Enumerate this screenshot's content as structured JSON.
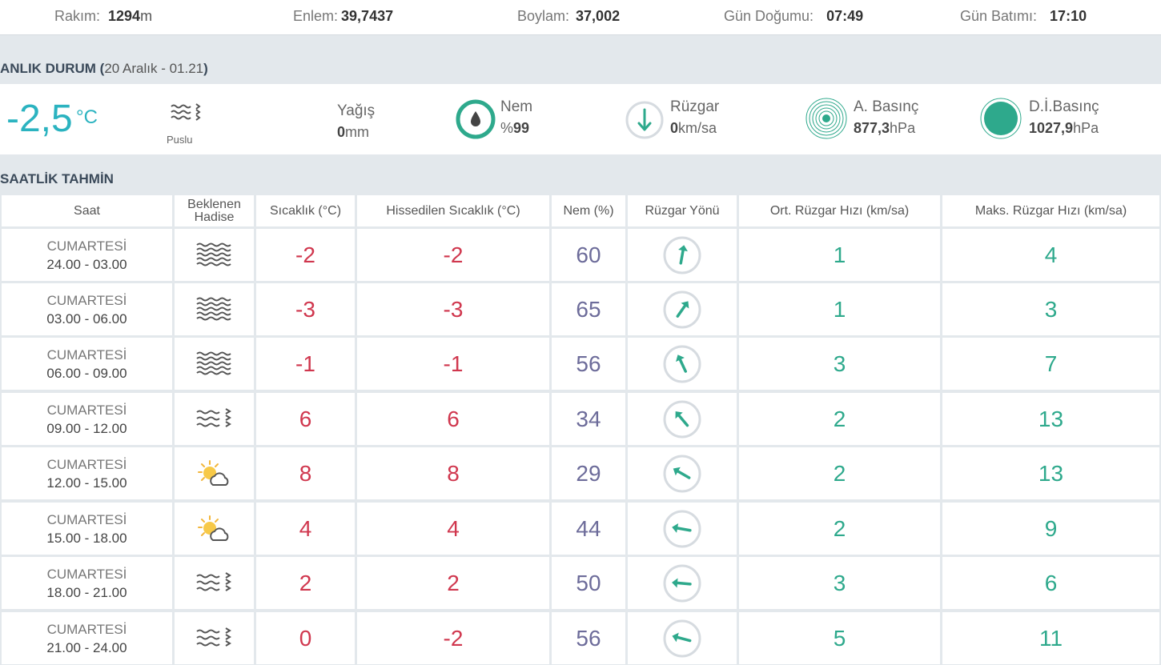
{
  "location": {
    "altitude_label": "Rakım:",
    "altitude_value": "1294",
    "altitude_unit": "m",
    "latitude_label": "Enlem:",
    "latitude_value": "39,7437",
    "longitude_label": "Boylam:",
    "longitude_value": "37,002",
    "sunrise_label": "Gün Doğumu:",
    "sunrise_value": "07:49",
    "sunset_label": "Gün Batımı:",
    "sunset_value": "17:10"
  },
  "current": {
    "title": "ANLIK DURUM (",
    "subtitle": "20 Aralık - 01.21",
    "title_close": ")",
    "temperature": "-2,5",
    "temperature_unit": "°C",
    "condition": "Puslu",
    "condition_icon": "fog-haze-icon",
    "precip_label": "Yağış",
    "precip_value": "0",
    "precip_unit": "mm",
    "humidity_label": "Nem",
    "humidity_prefix": "%",
    "humidity_value": "99",
    "wind_label": "Rüzgar",
    "wind_value": "0",
    "wind_unit": "km/sa",
    "pressure_label": "A. Basınç",
    "pressure_value": "877,3",
    "pressure_unit": "hPa",
    "sea_pressure_label": "D.İ.Basınç",
    "sea_pressure_value": "1027,9",
    "sea_pressure_unit": "hPa",
    "colors": {
      "accent": "#2bb3c0",
      "teal": "#2ea98c"
    }
  },
  "hourly": {
    "title": "SAATLİK TAHMİN",
    "headers": [
      "Saat",
      "Beklenen Hadise",
      "Sıcaklık (°C)",
      "Hissedilen Sıcaklık (°C)",
      "Nem (%)",
      "Rüzgar Yönü",
      "Ort. Rüzgar Hızı (km/sa)",
      "Maks. Rüzgar Hızı (km/sa)"
    ],
    "header_lines": {
      "event_line1": "Beklenen",
      "event_line2": "Hadise"
    },
    "rows": [
      {
        "day": "CUMARTESİ",
        "range": "24.00 - 03.00",
        "icon": "fog-icon",
        "temp": "-2",
        "feels": "-2",
        "humidity": "60",
        "wind_dir_deg": 10,
        "wind_avg": "1",
        "wind_max": "4"
      },
      {
        "day": "CUMARTESİ",
        "range": "03.00 - 06.00",
        "icon": "fog-icon",
        "temp": "-3",
        "feels": "-3",
        "humidity": "65",
        "wind_dir_deg": 35,
        "wind_avg": "1",
        "wind_max": "3"
      },
      {
        "day": "CUMARTESİ",
        "range": "06.00 - 09.00",
        "icon": "fog-icon",
        "temp": "-1",
        "feels": "-1",
        "humidity": "56",
        "wind_dir_deg": -25,
        "wind_avg": "3",
        "wind_max": "7"
      },
      {
        "day": "CUMARTESİ",
        "range": "09.00 - 12.00",
        "icon": "haze-icon",
        "temp": "6",
        "feels": "6",
        "humidity": "34",
        "wind_dir_deg": -40,
        "wind_avg": "2",
        "wind_max": "13"
      },
      {
        "day": "CUMARTESİ",
        "range": "12.00 - 15.00",
        "icon": "partly-cloudy-icon",
        "temp": "8",
        "feels": "8",
        "humidity": "29",
        "wind_dir_deg": -60,
        "wind_avg": "2",
        "wind_max": "13"
      },
      {
        "day": "CUMARTESİ",
        "range": "15.00 - 18.00",
        "icon": "partly-cloudy-icon",
        "temp": "4",
        "feels": "4",
        "humidity": "44",
        "wind_dir_deg": -80,
        "wind_avg": "2",
        "wind_max": "9"
      },
      {
        "day": "CUMARTESİ",
        "range": "18.00 - 21.00",
        "icon": "haze-icon",
        "temp": "2",
        "feels": "2",
        "humidity": "50",
        "wind_dir_deg": -85,
        "wind_avg": "3",
        "wind_max": "6"
      },
      {
        "day": "CUMARTESİ",
        "range": "21.00 - 24.00",
        "icon": "haze-icon",
        "temp": "0",
        "feels": "-2",
        "humidity": "56",
        "wind_dir_deg": -75,
        "wind_avg": "5",
        "wind_max": "11"
      }
    ]
  }
}
